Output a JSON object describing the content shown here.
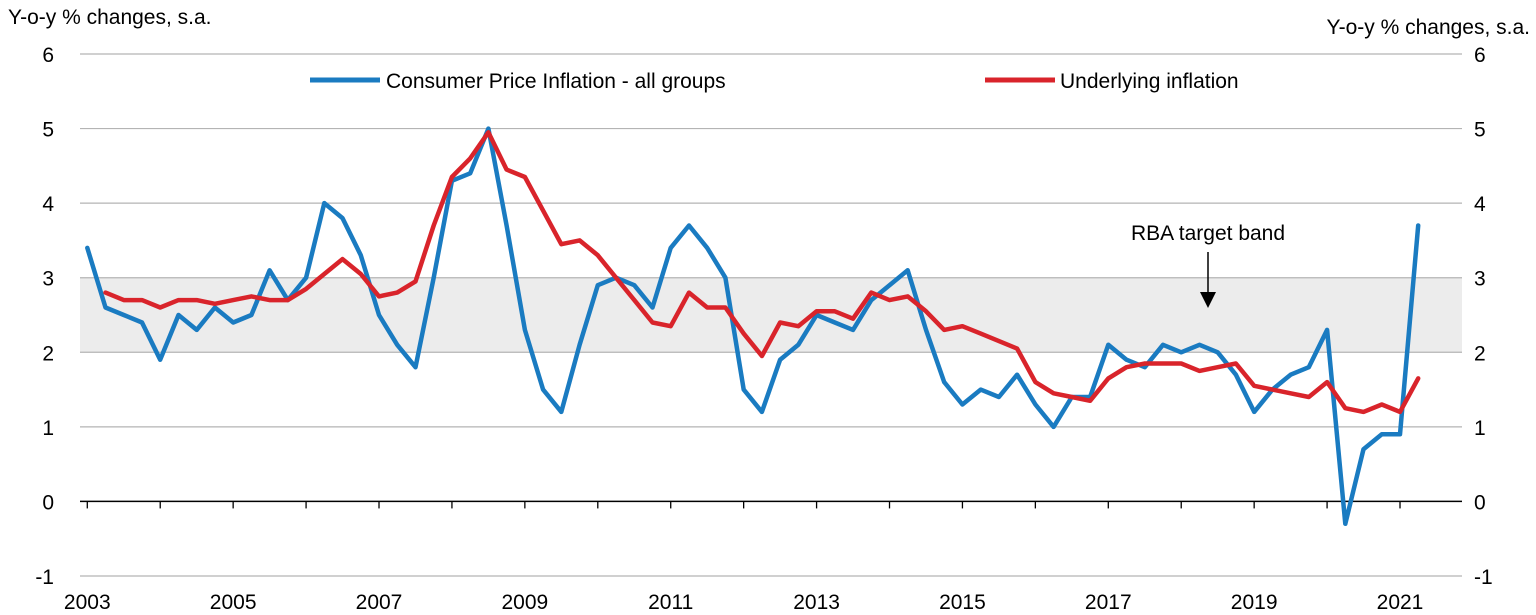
{
  "chart_data": {
    "type": "line",
    "y_axis_title_left": "Y-o-y % changes, s.a.",
    "y_axis_title_right": "Y-o-y % changes, s.a.",
    "ylim": [
      -1,
      6
    ],
    "yticks": [
      "6",
      "5",
      "4",
      "3",
      "2",
      "1",
      "0",
      "-1"
    ],
    "xlim": [
      2002.9,
      2021.85
    ],
    "xticks": [
      "2003",
      "2005",
      "2007",
      "2009",
      "2011",
      "2013",
      "2015",
      "2017",
      "2019",
      "2021"
    ],
    "target_band": {
      "low": 2,
      "high": 3,
      "label": "RBA target band"
    },
    "colors": {
      "cpi": "#1a7bc1",
      "underlying": "#d9242b",
      "band": "#ececec",
      "grid": "#b4b4b4"
    },
    "series": [
      {
        "name": "Consumer Price Inflation - all groups",
        "color": "#1a7bc1",
        "start": 2003.0,
        "step": 0.25,
        "values": [
          3.4,
          2.6,
          2.5,
          2.4,
          1.9,
          2.5,
          2.3,
          2.6,
          2.4,
          2.5,
          3.1,
          2.7,
          3.0,
          4.0,
          3.8,
          3.3,
          2.5,
          2.1,
          1.8,
          3.0,
          4.3,
          4.4,
          5.0,
          3.7,
          2.3,
          1.5,
          1.2,
          2.1,
          2.9,
          3.0,
          2.9,
          2.6,
          3.4,
          3.7,
          3.4,
          3.0,
          1.5,
          1.2,
          1.9,
          2.1,
          2.5,
          2.4,
          2.3,
          2.7,
          2.9,
          3.1,
          2.3,
          1.6,
          1.3,
          1.5,
          1.4,
          1.7,
          1.3,
          1.0,
          1.4,
          1.4,
          2.1,
          1.9,
          1.8,
          2.1,
          2.0,
          2.1,
          2.0,
          1.7,
          1.2,
          1.5,
          1.7,
          1.8,
          2.3,
          -0.3,
          0.7,
          0.9,
          0.9,
          3.7
        ]
      },
      {
        "name": "Underlying inflation",
        "color": "#d9242b",
        "start": 2003.25,
        "step": 0.25,
        "values": [
          2.8,
          2.7,
          2.7,
          2.6,
          2.7,
          2.7,
          2.65,
          2.7,
          2.75,
          2.7,
          2.7,
          2.85,
          3.05,
          3.25,
          3.05,
          2.75,
          2.8,
          2.95,
          3.7,
          4.35,
          4.6,
          4.95,
          4.45,
          4.35,
          3.9,
          3.45,
          3.5,
          3.3,
          3.0,
          2.7,
          2.4,
          2.35,
          2.8,
          2.6,
          2.6,
          2.25,
          1.95,
          2.4,
          2.35,
          2.55,
          2.55,
          2.45,
          2.8,
          2.7,
          2.75,
          2.55,
          2.3,
          2.35,
          2.25,
          2.15,
          2.05,
          1.6,
          1.45,
          1.4,
          1.35,
          1.65,
          1.8,
          1.85,
          1.85,
          1.85,
          1.75,
          1.8,
          1.85,
          1.55,
          1.5,
          1.45,
          1.4,
          1.6,
          1.25,
          1.2,
          1.3,
          1.2,
          1.65
        ]
      }
    ]
  }
}
